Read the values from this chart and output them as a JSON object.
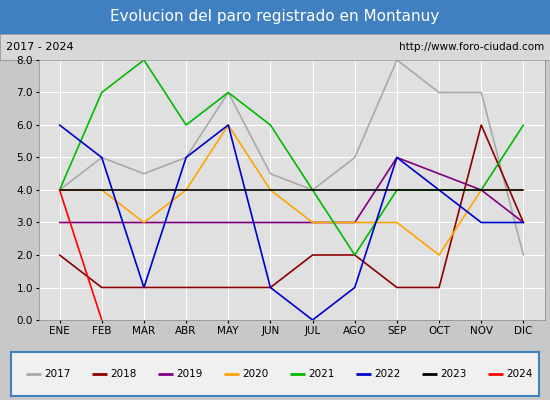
{
  "title": "Evolucion del paro registrado en Montanuy",
  "subtitle_left": "2017 - 2024",
  "subtitle_right": "http://www.foro-ciudad.com",
  "months": [
    "ENE",
    "FEB",
    "MAR",
    "ABR",
    "MAY",
    "JUN",
    "JUL",
    "AGO",
    "SEP",
    "OCT",
    "NOV",
    "DIC"
  ],
  "ylim": [
    0.0,
    8.0
  ],
  "yticks": [
    0.0,
    1.0,
    2.0,
    3.0,
    4.0,
    5.0,
    6.0,
    7.0,
    8.0
  ],
  "series": {
    "2017": {
      "values": [
        4.0,
        5.0,
        4.5,
        5.0,
        7.0,
        4.5,
        4.0,
        5.0,
        8.0,
        7.0,
        7.0,
        2.0
      ],
      "color": "#aaaaaa",
      "linewidth": 1.2
    },
    "2018": {
      "values": [
        2.0,
        1.0,
        1.0,
        1.0,
        1.0,
        1.0,
        2.0,
        2.0,
        1.0,
        1.0,
        6.0,
        3.0
      ],
      "color": "#8b0000",
      "linewidth": 1.2
    },
    "2019": {
      "values": [
        3.0,
        3.0,
        3.0,
        3.0,
        3.0,
        3.0,
        3.0,
        3.0,
        5.0,
        4.5,
        4.0,
        3.0
      ],
      "color": "#800080",
      "linewidth": 1.2
    },
    "2020": {
      "values": [
        4.0,
        4.0,
        3.0,
        4.0,
        6.0,
        4.0,
        3.0,
        3.0,
        3.0,
        2.0,
        4.0,
        4.0
      ],
      "color": "#ffa500",
      "linewidth": 1.2
    },
    "2021": {
      "values": [
        4.0,
        7.0,
        8.0,
        6.0,
        7.0,
        6.0,
        4.0,
        2.0,
        4.0,
        4.0,
        4.0,
        6.0
      ],
      "color": "#00bb00",
      "linewidth": 1.2
    },
    "2022": {
      "values": [
        6.0,
        5.0,
        1.0,
        5.0,
        6.0,
        1.0,
        0.0,
        1.0,
        5.0,
        4.0,
        3.0,
        3.0
      ],
      "color": "#0000cc",
      "linewidth": 1.2
    },
    "2023": {
      "values": [
        4.0,
        4.0,
        4.0,
        4.0,
        4.0,
        4.0,
        4.0,
        4.0,
        4.0,
        4.0,
        4.0,
        4.0
      ],
      "color": "#000000",
      "linewidth": 1.2
    },
    "2024": {
      "values": [
        4.0,
        0.0,
        null,
        null,
        null,
        null,
        null,
        null,
        null,
        null,
        null,
        null
      ],
      "color": "#ff0000",
      "linewidth": 1.2
    }
  },
  "title_bg_color": "#4080c0",
  "title_text_color": "#ffffff",
  "subtitle_bg_color": "#d8d8d8",
  "plot_bg_color": "#e0e0e0",
  "grid_color": "#ffffff",
  "legend_bg_color": "#f0f0f0",
  "legend_border_color": "#4080c0",
  "outer_bg_color": "#c8c8c8"
}
